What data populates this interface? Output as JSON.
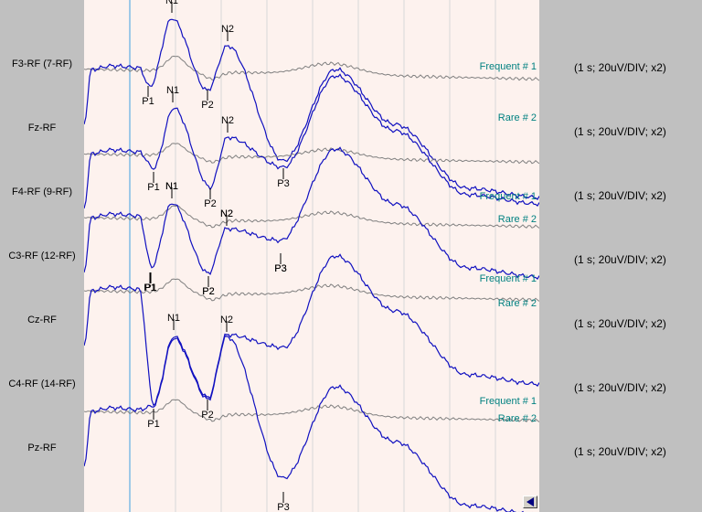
{
  "channels": [
    {
      "label": "F3-RF (7-RF)",
      "scale": "(1 s; 20uV/DIV; x2)"
    },
    {
      "label": "Fz-RF",
      "scale": "(1 s; 20uV/DIV; x2)"
    },
    {
      "label": "F4-RF (9-RF)",
      "scale": "(1 s; 20uV/DIV; x2)"
    },
    {
      "label": "C3-RF (12-RF)",
      "scale": "(1 s; 20uV/DIV; x2)"
    },
    {
      "label": "Cz-RF",
      "scale": "(1 s; 20uV/DIV; x2)"
    },
    {
      "label": "C4-RF (14-RF)",
      "scale": "(1 s; 20uV/DIV; x2)"
    },
    {
      "label": "Pz-RF",
      "scale": "(1 s; 20uV/DIV; x2)"
    }
  ],
  "trace_labels": {
    "frequent": "Frequent # 1",
    "rare": "Rare # 2"
  },
  "peak_labels": {
    "p1": "P1",
    "n1": "N1",
    "p2": "P2",
    "n2": "N2",
    "p3": "P3"
  },
  "colors": {
    "rare": "#1010c0",
    "frequent": "#808080",
    "trace_label": "#008080",
    "grid": "#d8d8d8",
    "cursor": "#40a0e0"
  }
}
